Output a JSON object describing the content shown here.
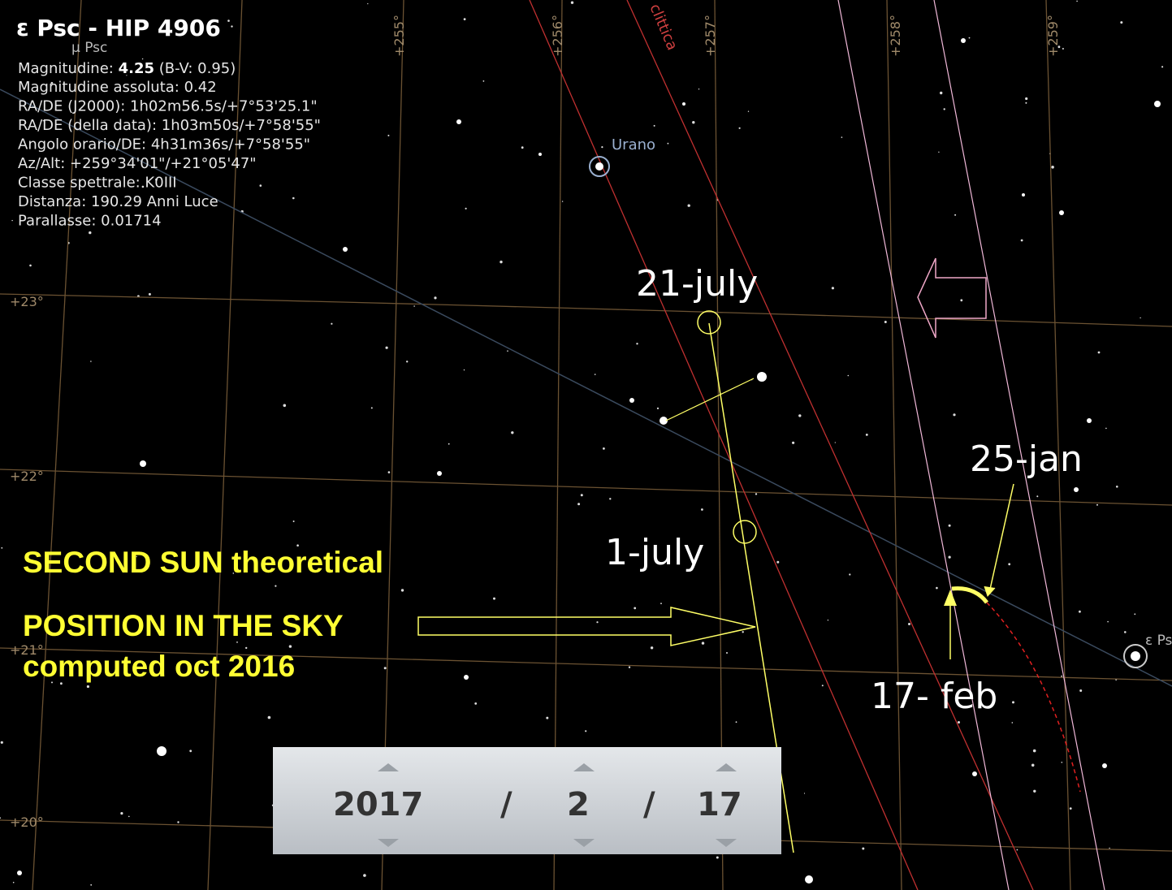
{
  "info": {
    "title": "ε Psc - HIP 4906",
    "magnitude": {
      "label": "Magnitudine:",
      "value": "4.25",
      "detail": "(B-V: 0.95)"
    },
    "lines": [
      "Magnitudine assoluta: 0.42",
      "RA/DE (J2000): 1h02m56.5s/+7°53'25.1\"",
      "RA/DE (della data): 1h03m50s/+7°58'55\"",
      "Angolo orario/DE: 4h31m36s/+7°58'55\"",
      "Az/Alt: +259°34'01\"/+21°05'47\"",
      "Classe spettrale: K0III",
      "Distanza: 190.29 Anni Luce",
      "Parallasse: 0.01714"
    ]
  },
  "grid_labels": {
    "ra": [
      "+255°",
      "+256°",
      "+257°",
      "+258°",
      "+259°"
    ],
    "dec": [
      "+23°",
      "+22°",
      "+21°",
      "+20°"
    ]
  },
  "sky_labels": {
    "ecliptic": "clittica",
    "planet": "Urano",
    "star_mu": "µ Psc",
    "star_eps": "ε Ps"
  },
  "annotations": {
    "july21": "21-july",
    "july1": "1-july",
    "jan25": "25-jan",
    "feb17": "17- feb",
    "caption": [
      "SECOND SUN theoretical",
      "POSITION IN THE SKY",
      "computed oct 2016"
    ]
  },
  "date_picker": {
    "year": "2017",
    "sep1": "/",
    "month": "2",
    "sep2": "/",
    "day": "17"
  }
}
